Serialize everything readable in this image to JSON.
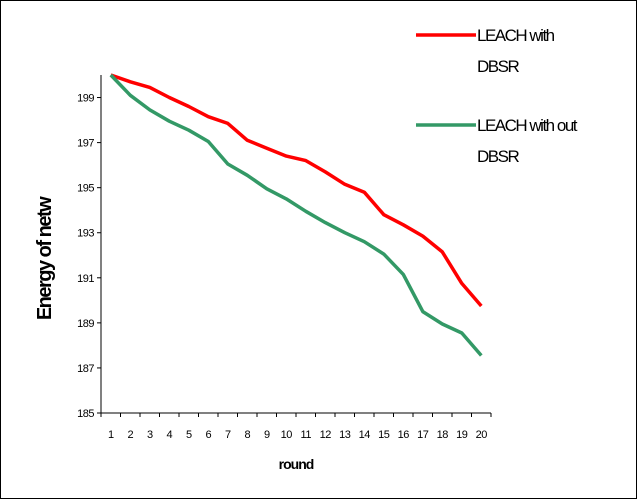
{
  "chart_data": {
    "type": "line",
    "title": "",
    "xlabel": "round",
    "ylabel": "Energy of netw",
    "categories": [
      "1",
      "2",
      "3",
      "4",
      "5",
      "6",
      "7",
      "8",
      "9",
      "10",
      "11",
      "12",
      "13",
      "14",
      "15",
      "16",
      "17",
      "18",
      "19",
      "20"
    ],
    "ylim": [
      185,
      200
    ],
    "yticks": [
      185,
      187,
      189,
      191,
      193,
      195,
      197,
      199
    ],
    "grid": false,
    "legend_position": "top-right",
    "series": [
      {
        "name": "LEACH with DBSR",
        "legend_lines": [
          "LEACH with",
          "DBSR"
        ],
        "color": "#ff0000",
        "values": [
          200.0,
          199.7,
          199.45,
          199.0,
          198.6,
          198.15,
          197.85,
          197.1,
          196.75,
          196.4,
          196.2,
          195.7,
          195.15,
          194.8,
          193.8,
          193.35,
          192.85,
          192.15,
          190.75,
          189.75
        ]
      },
      {
        "name": "LEACH with out DBSR",
        "legend_lines": [
          "LEACH with out",
          "DBSR"
        ],
        "color": "#339966",
        "values": [
          200.0,
          199.1,
          198.45,
          197.95,
          197.55,
          197.05,
          196.05,
          195.55,
          194.95,
          194.5,
          193.95,
          193.45,
          193.0,
          192.6,
          192.05,
          191.15,
          189.5,
          188.95,
          188.55,
          187.55
        ]
      }
    ]
  }
}
